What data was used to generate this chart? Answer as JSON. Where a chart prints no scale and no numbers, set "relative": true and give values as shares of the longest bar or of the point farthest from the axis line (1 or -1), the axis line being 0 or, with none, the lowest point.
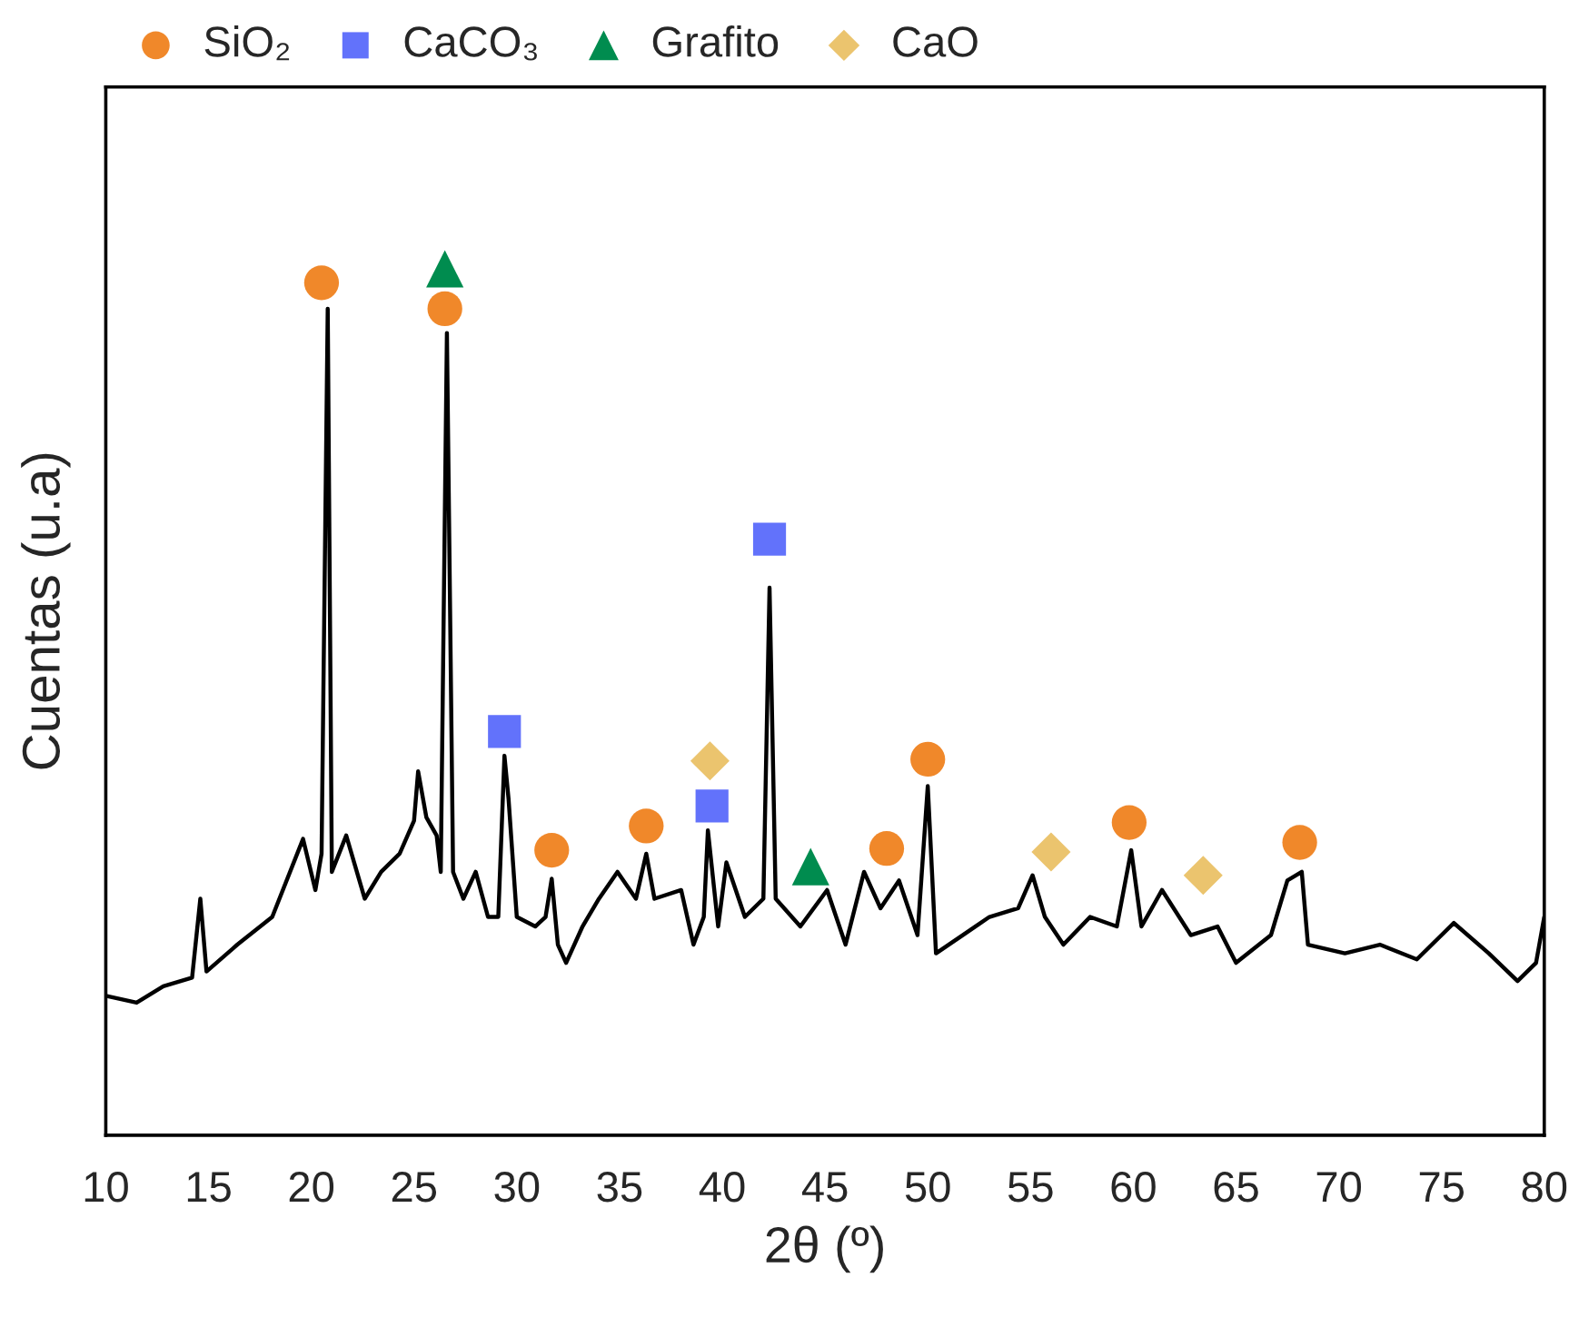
{
  "chart_data": {
    "type": "line",
    "relative": true,
    "xlabel": "2θ (º)",
    "ylabel": "Cuentas (u.a)",
    "xlim": [
      10,
      80
    ],
    "xticks": [
      10,
      15,
      20,
      25,
      30,
      35,
      40,
      45,
      50,
      55,
      60,
      65,
      70,
      75,
      80
    ],
    "tick_labels": "x",
    "legend": "top",
    "grid": false,
    "series": [
      {
        "color": "#000000",
        "marker": "none",
        "x": [
          10,
          11.5,
          12.8,
          14.2,
          14.6,
          14.9,
          16.4,
          18.1,
          19.6,
          20.2,
          20.5,
          20.8,
          21.0,
          21.7,
          22.6,
          23.4,
          24.3,
          25.0,
          25.2,
          25.6,
          26.1,
          26.3,
          26.6,
          26.9,
          27.4,
          28.0,
          28.6,
          29.1,
          29.4,
          29.6,
          30.0,
          30.9,
          31.4,
          31.7,
          32.0,
          32.4,
          33.2,
          34.0,
          34.9,
          35.8,
          36.3,
          36.7,
          38.0,
          38.6,
          39.1,
          39.3,
          39.8,
          40.2,
          41.1,
          42.0,
          42.3,
          42.6,
          43.8,
          45.1,
          46.0,
          46.9,
          47.7,
          48.6,
          49.5,
          50.0,
          50.4,
          51.7,
          53.0,
          54.4,
          55.1,
          55.7,
          56.6,
          57.9,
          59.2,
          59.9,
          60.4,
          61.4,
          62.8,
          64.1,
          65.0,
          66.7,
          67.5,
          68.2,
          68.5,
          70.3,
          72.0,
          73.8,
          75.6,
          77.3,
          78.7,
          79.6,
          80.0
        ],
        "values": [
          0.161,
          0.153,
          0.172,
          0.182,
          0.273,
          0.189,
          0.22,
          0.252,
          0.342,
          0.283,
          0.325,
          0.954,
          0.304,
          0.346,
          0.273,
          0.304,
          0.325,
          0.363,
          0.42,
          0.367,
          0.346,
          0.304,
          0.926,
          0.304,
          0.273,
          0.304,
          0.252,
          0.252,
          0.438,
          0.388,
          0.252,
          0.241,
          0.252,
          0.296,
          0.22,
          0.199,
          0.241,
          0.273,
          0.304,
          0.273,
          0.325,
          0.273,
          0.283,
          0.22,
          0.252,
          0.352,
          0.241,
          0.315,
          0.252,
          0.273,
          0.632,
          0.273,
          0.241,
          0.283,
          0.22,
          0.304,
          0.262,
          0.294,
          0.231,
          0.403,
          0.21,
          0.231,
          0.252,
          0.262,
          0.3,
          0.252,
          0.22,
          0.252,
          0.241,
          0.329,
          0.241,
          0.283,
          0.231,
          0.241,
          0.199,
          0.231,
          0.294,
          0.304,
          0.22,
          0.21,
          0.22,
          0.203,
          0.245,
          0.21,
          0.178,
          0.199,
          0.252
        ]
      },
      {
        "type": "scatter",
        "name": "SiO₂",
        "color": "#f0882a",
        "marker": "circle",
        "x": [
          20.5,
          26.5,
          31.7,
          36.3,
          48.0,
          50.0,
          59.8,
          68.1
        ],
        "values": [
          0.984,
          0.954,
          0.329,
          0.357,
          0.331,
          0.434,
          0.361,
          0.338
        ]
      },
      {
        "type": "scatter",
        "name": "CaCO₃",
        "color": "#6272fb",
        "marker": "square",
        "x": [
          29.4,
          39.5,
          42.3
        ],
        "values": [
          0.466,
          0.38,
          0.688
        ]
      },
      {
        "type": "scatter",
        "name": "Grafito",
        "color": "#008c4f",
        "marker": "triangle",
        "x": [
          26.5,
          44.3
        ],
        "values": [
          1.0,
          0.31
        ]
      },
      {
        "type": "scatter",
        "name": "CaO",
        "color": "#ebc46e",
        "marker": "diamond",
        "x": [
          39.4,
          56.0,
          63.4
        ],
        "values": [
          0.432,
          0.327,
          0.3
        ]
      }
    ]
  }
}
